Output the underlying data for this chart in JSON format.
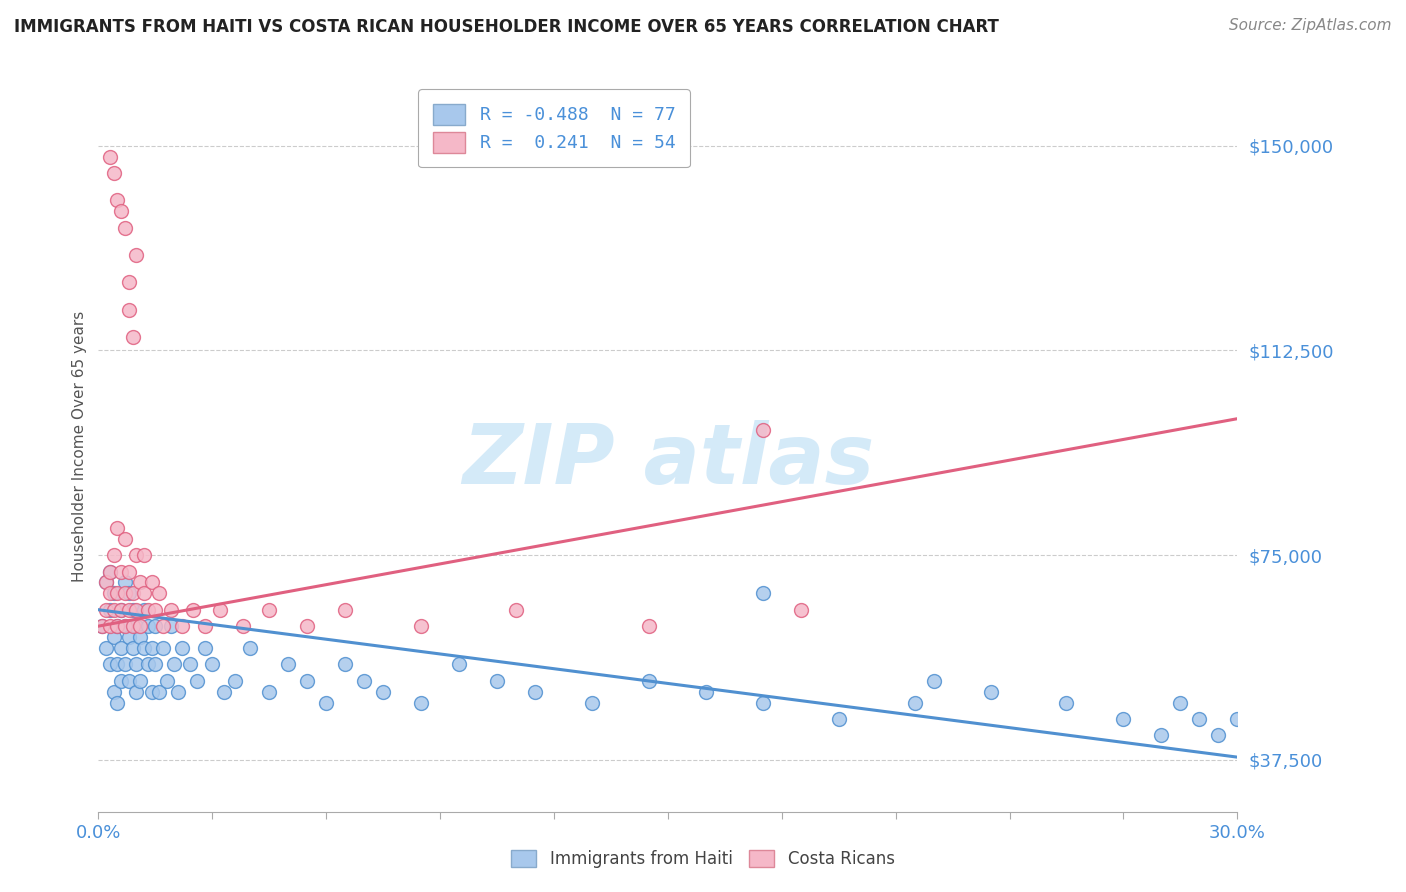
{
  "title": "IMMIGRANTS FROM HAITI VS COSTA RICAN HOUSEHOLDER INCOME OVER 65 YEARS CORRELATION CHART",
  "source": "Source: ZipAtlas.com",
  "ylabel": "Householder Income Over 65 years",
  "xlim": [
    0.0,
    0.3
  ],
  "ylim": [
    28000,
    162000
  ],
  "yticks": [
    37500,
    75000,
    112500,
    150000
  ],
  "ytick_labels": [
    "$37,500",
    "$75,000",
    "$112,500",
    "$150,000"
  ],
  "blue_color": "#a8c8ec",
  "pink_color": "#f5b8c8",
  "blue_line_color": "#5090d0",
  "pink_line_color": "#e06080",
  "axis_label_color": "#4a90d9",
  "watermark_color": "#d0e8f8",
  "blue_R": -0.488,
  "blue_N": 77,
  "pink_R": 0.241,
  "pink_N": 54,
  "blue_line_x0": 0.0,
  "blue_line_y0": 65000,
  "blue_line_x1": 0.3,
  "blue_line_y1": 38000,
  "pink_line_x0": 0.0,
  "pink_line_y0": 62000,
  "pink_line_x1": 0.3,
  "pink_line_y1": 100000,
  "blue_pts_x": [
    0.001,
    0.002,
    0.002,
    0.003,
    0.003,
    0.003,
    0.004,
    0.004,
    0.004,
    0.005,
    0.005,
    0.005,
    0.006,
    0.006,
    0.006,
    0.007,
    0.007,
    0.007,
    0.008,
    0.008,
    0.008,
    0.009,
    0.009,
    0.01,
    0.01,
    0.01,
    0.011,
    0.011,
    0.012,
    0.012,
    0.013,
    0.013,
    0.014,
    0.014,
    0.015,
    0.015,
    0.016,
    0.017,
    0.018,
    0.019,
    0.02,
    0.021,
    0.022,
    0.024,
    0.026,
    0.028,
    0.03,
    0.033,
    0.036,
    0.04,
    0.045,
    0.05,
    0.055,
    0.06,
    0.065,
    0.07,
    0.075,
    0.085,
    0.095,
    0.105,
    0.115,
    0.13,
    0.145,
    0.16,
    0.175,
    0.195,
    0.215,
    0.235,
    0.255,
    0.27,
    0.28,
    0.285,
    0.29,
    0.295,
    0.3,
    0.175,
    0.22
  ],
  "blue_pts_y": [
    62000,
    58000,
    70000,
    55000,
    65000,
    72000,
    60000,
    68000,
    50000,
    62000,
    55000,
    48000,
    65000,
    58000,
    52000,
    62000,
    55000,
    70000,
    60000,
    52000,
    68000,
    58000,
    65000,
    62000,
    55000,
    50000,
    60000,
    52000,
    58000,
    65000,
    55000,
    62000,
    50000,
    58000,
    55000,
    62000,
    50000,
    58000,
    52000,
    62000,
    55000,
    50000,
    58000,
    55000,
    52000,
    58000,
    55000,
    50000,
    52000,
    58000,
    50000,
    55000,
    52000,
    48000,
    55000,
    52000,
    50000,
    48000,
    55000,
    52000,
    50000,
    48000,
    52000,
    50000,
    48000,
    45000,
    48000,
    50000,
    48000,
    45000,
    42000,
    48000,
    45000,
    42000,
    45000,
    68000,
    52000
  ],
  "pink_pts_x": [
    0.001,
    0.002,
    0.002,
    0.003,
    0.003,
    0.003,
    0.004,
    0.004,
    0.005,
    0.005,
    0.005,
    0.006,
    0.006,
    0.007,
    0.007,
    0.007,
    0.008,
    0.008,
    0.009,
    0.009,
    0.01,
    0.01,
    0.011,
    0.011,
    0.012,
    0.012,
    0.013,
    0.014,
    0.015,
    0.016,
    0.017,
    0.019,
    0.022,
    0.025,
    0.028,
    0.032,
    0.038,
    0.045,
    0.055,
    0.065,
    0.085,
    0.11,
    0.145,
    0.185,
    0.008,
    0.01,
    0.003,
    0.004,
    0.005,
    0.006,
    0.007,
    0.008,
    0.009,
    0.175
  ],
  "pink_pts_y": [
    62000,
    65000,
    70000,
    62000,
    68000,
    72000,
    65000,
    75000,
    62000,
    68000,
    80000,
    65000,
    72000,
    62000,
    68000,
    78000,
    65000,
    72000,
    62000,
    68000,
    75000,
    65000,
    70000,
    62000,
    68000,
    75000,
    65000,
    70000,
    65000,
    68000,
    62000,
    65000,
    62000,
    65000,
    62000,
    65000,
    62000,
    65000,
    62000,
    65000,
    62000,
    65000,
    62000,
    65000,
    125000,
    130000,
    148000,
    145000,
    140000,
    138000,
    135000,
    120000,
    115000,
    98000
  ]
}
